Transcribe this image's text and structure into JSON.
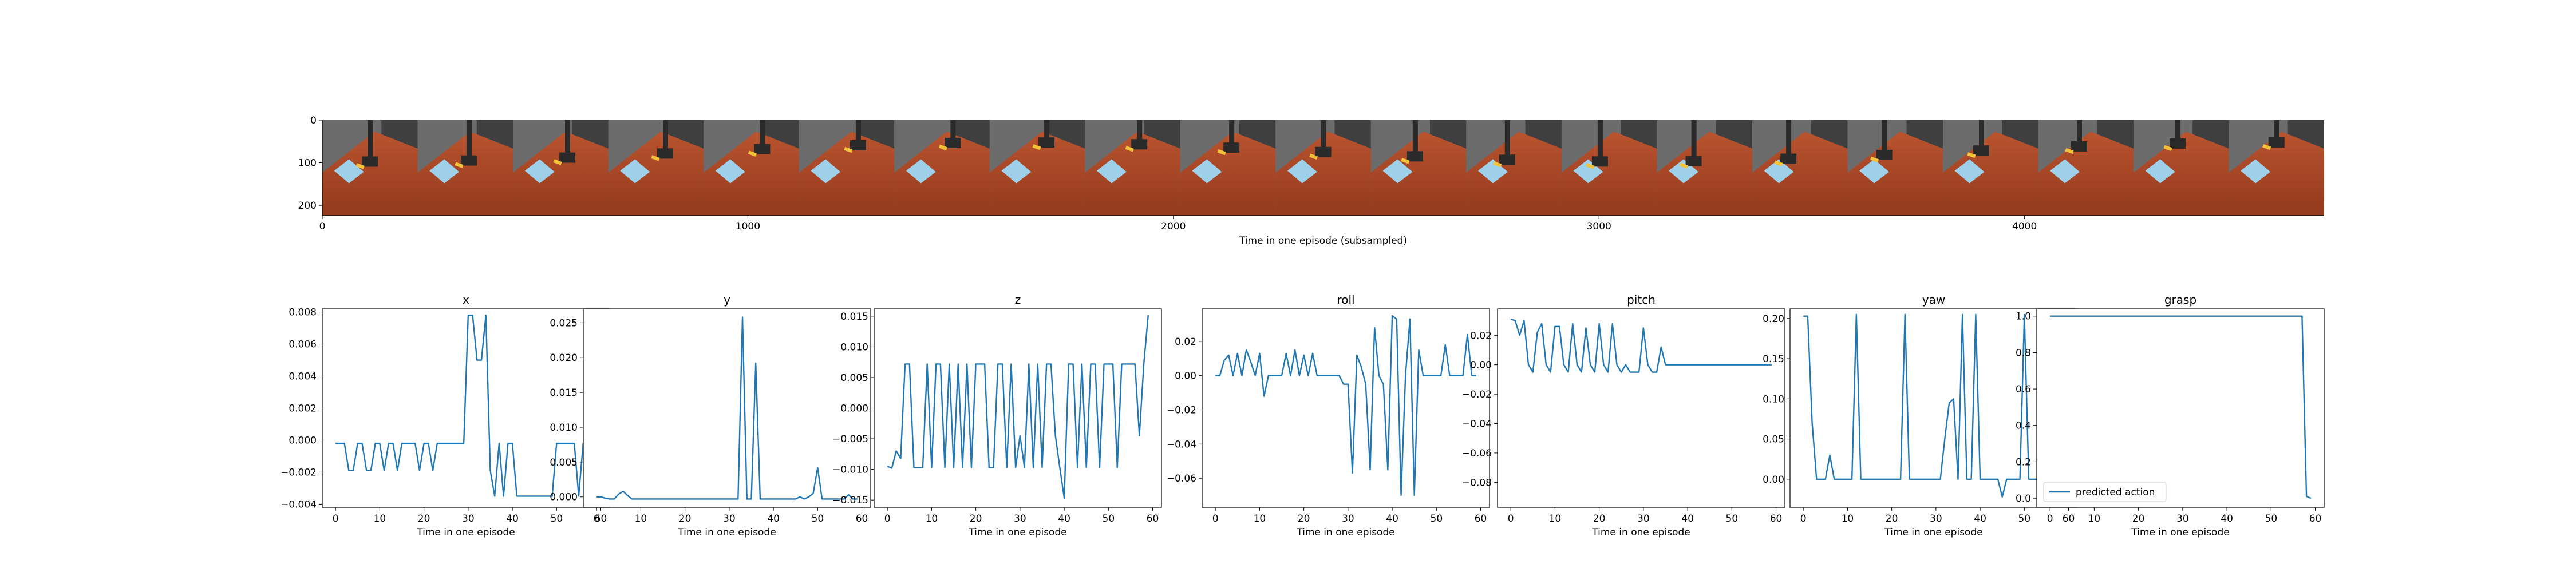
{
  "filmstrip": {
    "xlabel": "Time in one episode (subsampled)",
    "x_ticks": [
      0,
      1000,
      2000,
      3000,
      4000
    ],
    "y_ticks": [
      0,
      100,
      200
    ],
    "frame_count": 21,
    "colors": {
      "background": "#6b6b6b",
      "background_dark": "#3f3f3f",
      "table": "#b9542f",
      "table_dark": "#93391d",
      "cloth": "#9fd0ea",
      "robot": "#2a2a2a",
      "object": "#f2c23a"
    }
  },
  "chart_data": [
    {
      "type": "line",
      "title": "x",
      "xlabel": "Time in one episode",
      "ylabel": "",
      "xlim": [
        -3,
        62
      ],
      "ylim": [
        -0.0042,
        0.0082
      ],
      "x_ticks": [
        0,
        10,
        20,
        30,
        40,
        50,
        60
      ],
      "y_ticks": [
        -0.004,
        -0.002,
        0.0,
        0.002,
        0.004,
        0.006,
        0.008
      ],
      "y_tick_labels": [
        "−0.004",
        "−0.002",
        "0.000",
        "0.002",
        "0.004",
        "0.006",
        "0.008"
      ],
      "series": [
        {
          "color": "#1f77b4",
          "values": [
            -0.0002,
            -0.0002,
            -0.0002,
            -0.0019,
            -0.0019,
            -0.0002,
            -0.0002,
            -0.0019,
            -0.0019,
            -0.0002,
            -0.0002,
            -0.0019,
            -0.0002,
            -0.0002,
            -0.0019,
            -0.0002,
            -0.0002,
            -0.0002,
            -0.0002,
            -0.0019,
            -0.0002,
            -0.0002,
            -0.0019,
            -0.0002,
            -0.0002,
            -0.0002,
            -0.0002,
            -0.0002,
            -0.0002,
            -0.0002,
            0.0078,
            0.0078,
            0.005,
            0.005,
            0.0078,
            -0.0019,
            -0.0035,
            -0.0002,
            -0.0035,
            -0.0002,
            -0.0002,
            -0.0035,
            -0.0035,
            -0.0035,
            -0.0035,
            -0.0035,
            -0.0035,
            -0.0035,
            -0.0035,
            -0.0035,
            -0.0002,
            -0.0002,
            -0.0002,
            -0.0002,
            -0.0002,
            -0.0035,
            -0.0002,
            -0.0002,
            -0.0035,
            -0.0002,
            -0.0019
          ]
        }
      ]
    },
    {
      "type": "line",
      "title": "y",
      "xlabel": "Time in one episode",
      "ylabel": "",
      "xlim": [
        -3,
        62
      ],
      "ylim": [
        -0.0015,
        0.027
      ],
      "x_ticks": [
        0,
        10,
        20,
        30,
        40,
        50,
        60
      ],
      "y_ticks": [
        0.0,
        0.005,
        0.01,
        0.015,
        0.02,
        0.025
      ],
      "y_tick_labels": [
        "0.000",
        "0.005",
        "0.010",
        "0.015",
        "0.020",
        "0.025"
      ],
      "series": [
        {
          "color": "#1f77b4",
          "values": [
            0.0,
            0.0,
            -0.0002,
            -0.0003,
            -0.0003,
            0.0004,
            0.0008,
            0.0002,
            -0.0003,
            -0.0003,
            -0.0003,
            -0.0003,
            -0.0003,
            -0.0003,
            -0.0003,
            -0.0003,
            -0.0003,
            -0.0003,
            -0.0003,
            -0.0003,
            -0.0003,
            -0.0003,
            -0.0003,
            -0.0003,
            -0.0003,
            -0.0003,
            -0.0003,
            -0.0003,
            -0.0003,
            -0.0003,
            -0.0003,
            -0.0003,
            -0.0003,
            0.0258,
            -0.0003,
            -0.0003,
            0.0192,
            -0.0003,
            -0.0003,
            -0.0003,
            -0.0003,
            -0.0003,
            -0.0003,
            -0.0003,
            -0.0003,
            -0.0003,
            0.0,
            -0.0003,
            0.0,
            0.0005,
            0.0042,
            -0.0003,
            -0.0003,
            -0.0003,
            -0.0003,
            -0.0003,
            -0.0003,
            0.0003,
            -0.0003,
            -0.0003
          ]
        }
      ]
    },
    {
      "type": "line",
      "title": "z",
      "xlabel": "Time in one episode",
      "ylabel": "",
      "xlim": [
        -3,
        62
      ],
      "ylim": [
        -0.0162,
        0.0162
      ],
      "x_ticks": [
        0,
        10,
        20,
        30,
        40,
        50,
        60
      ],
      "y_ticks": [
        -0.015,
        -0.01,
        -0.005,
        0.0,
        0.005,
        0.01,
        0.015
      ],
      "y_tick_labels": [
        "−0.015",
        "−0.010",
        "−0.005",
        "0.000",
        "0.005",
        "0.010",
        "0.015"
      ],
      "series": [
        {
          "color": "#1f77b4",
          "values": [
            -0.0095,
            -0.0098,
            -0.007,
            -0.0082,
            0.0072,
            0.0072,
            -0.0097,
            -0.0097,
            -0.0097,
            0.0072,
            -0.0097,
            0.0072,
            0.0072,
            -0.0097,
            0.0072,
            -0.0097,
            0.0072,
            -0.0097,
            0.0072,
            -0.0097,
            0.0072,
            0.0072,
            0.0072,
            -0.0097,
            -0.0097,
            0.0072,
            0.0072,
            -0.0097,
            0.0072,
            -0.0097,
            -0.0045,
            -0.0097,
            0.0072,
            -0.0097,
            0.0072,
            -0.0097,
            0.0072,
            0.0072,
            -0.0045,
            -0.0097,
            -0.0147,
            0.0072,
            0.0072,
            -0.0097,
            0.0072,
            -0.0097,
            0.0072,
            0.0072,
            -0.0097,
            0.0072,
            0.0072,
            0.0072,
            -0.0097,
            0.0072,
            0.0072,
            0.0072,
            0.0072,
            -0.0045,
            0.0072,
            0.0152
          ]
        }
      ]
    },
    {
      "type": "line",
      "title": "roll",
      "xlabel": "Time in one episode",
      "ylabel": "",
      "xlim": [
        -3,
        62
      ],
      "ylim": [
        -0.077,
        0.039
      ],
      "x_ticks": [
        0,
        10,
        20,
        30,
        40,
        50,
        60
      ],
      "y_ticks": [
        -0.06,
        -0.04,
        -0.02,
        0.0,
        0.02
      ],
      "y_tick_labels": [
        "−0.06",
        "−0.04",
        "−0.02",
        "0.00",
        "0.02"
      ],
      "series": [
        {
          "color": "#1f77b4",
          "values": [
            0.0,
            0.0,
            0.009,
            0.012,
            0.0,
            0.013,
            0.0,
            0.015,
            0.008,
            0.0,
            0.013,
            -0.012,
            0.0,
            0.0,
            0.0,
            0.0,
            0.013,
            0.0,
            0.015,
            0.0,
            0.012,
            0.0,
            0.013,
            0.0,
            0.0,
            0.0,
            0.0,
            0.0,
            0.0,
            -0.005,
            -0.005,
            -0.057,
            0.012,
            0.005,
            -0.005,
            -0.055,
            0.028,
            0.0,
            -0.005,
            -0.055,
            0.035,
            0.033,
            -0.07,
            0.0,
            0.033,
            -0.07,
            0.015,
            0.0,
            0.0,
            0.0,
            0.0,
            0.0,
            0.018,
            0.0,
            0.0,
            0.0,
            0.0,
            0.024,
            0.0,
            0.0
          ]
        }
      ]
    },
    {
      "type": "line",
      "title": "pitch",
      "xlabel": "Time in one episode",
      "ylabel": "",
      "xlim": [
        -3,
        62
      ],
      "ylim": [
        -0.097,
        0.038
      ],
      "x_ticks": [
        0,
        10,
        20,
        30,
        40,
        50,
        60
      ],
      "y_ticks": [
        -0.08,
        -0.06,
        -0.04,
        -0.02,
        0.0,
        0.02
      ],
      "y_tick_labels": [
        "−0.08",
        "−0.06",
        "−0.04",
        "−0.02",
        "0.00",
        "0.02"
      ],
      "series": [
        {
          "color": "#1f77b4",
          "values": [
            0.031,
            0.03,
            0.02,
            0.03,
            0.0,
            -0.005,
            0.022,
            0.028,
            0.0,
            -0.005,
            0.026,
            0.026,
            0.0,
            -0.005,
            0.028,
            0.0,
            -0.005,
            0.025,
            0.0,
            -0.005,
            0.028,
            0.0,
            -0.005,
            0.028,
            0.0,
            -0.005,
            0.0,
            -0.005,
            -0.005,
            -0.005,
            0.025,
            0.0,
            -0.005,
            -0.005,
            0.012,
            0.0,
            0.0,
            0.0,
            0.0,
            0.0,
            0.0,
            0.0,
            0.0,
            0.0,
            0.0,
            0.0,
            0.0,
            0.0,
            0.0,
            0.0,
            0.0,
            0.0,
            0.0,
            0.0,
            0.0,
            0.0,
            0.0,
            0.0,
            0.0,
            0.0
          ]
        }
      ]
    },
    {
      "type": "line",
      "title": "yaw",
      "xlabel": "Time in one episode",
      "ylabel": "",
      "xlim": [
        -3,
        62
      ],
      "ylim": [
        -0.035,
        0.212
      ],
      "x_ticks": [
        0,
        10,
        20,
        30,
        40,
        50,
        60
      ],
      "y_ticks": [
        0.0,
        0.05,
        0.1,
        0.15,
        0.2
      ],
      "y_tick_labels": [
        "0.00",
        "0.05",
        "0.10",
        "0.15",
        "0.20"
      ],
      "series": [
        {
          "color": "#1f77b4",
          "values": [
            0.203,
            0.203,
            0.07,
            0.0,
            0.0,
            0.0,
            0.03,
            0.0,
            0.0,
            0.0,
            0.0,
            0.0,
            0.205,
            0.0,
            0.0,
            0.0,
            0.0,
            0.0,
            0.0,
            0.0,
            0.0,
            0.0,
            0.0,
            0.205,
            0.0,
            0.0,
            0.0,
            0.0,
            0.0,
            0.0,
            0.0,
            0.0,
            0.05,
            0.095,
            0.1,
            0.0,
            0.205,
            0.0,
            0.0,
            0.205,
            0.0,
            0.0,
            0.0,
            0.0,
            0.0,
            -0.022,
            0.0,
            0.0,
            0.0,
            0.0,
            0.205,
            0.0,
            0.0,
            0.0,
            0.0,
            0.0,
            0.0,
            0.0,
            0.0,
            0.0
          ]
        }
      ]
    },
    {
      "type": "line",
      "title": "grasp",
      "xlabel": "Time in one episode",
      "ylabel": "",
      "xlim": [
        -3,
        62
      ],
      "ylim": [
        -0.05,
        1.04
      ],
      "x_ticks": [
        0,
        10,
        20,
        30,
        40,
        50,
        60
      ],
      "y_ticks": [
        0.0,
        0.2,
        0.4,
        0.6,
        0.8,
        1.0
      ],
      "y_tick_labels": [
        "0.0",
        "0.2",
        "0.4",
        "0.6",
        "0.8",
        "1.0"
      ],
      "legend": {
        "position": "lower left",
        "entries": [
          "predicted action"
        ]
      },
      "series": [
        {
          "name": "predicted action",
          "color": "#1f77b4",
          "values": [
            1,
            1,
            1,
            1,
            1,
            1,
            1,
            1,
            1,
            1,
            1,
            1,
            1,
            1,
            1,
            1,
            1,
            1,
            1,
            1,
            1,
            1,
            1,
            1,
            1,
            1,
            1,
            1,
            1,
            1,
            1,
            1,
            1,
            1,
            1,
            1,
            1,
            1,
            1,
            1,
            1,
            1,
            1,
            1,
            1,
            1,
            1,
            1,
            1,
            1,
            1,
            1,
            1,
            1,
            1,
            1,
            1,
            1,
            0.01,
            0.0
          ]
        }
      ]
    }
  ]
}
